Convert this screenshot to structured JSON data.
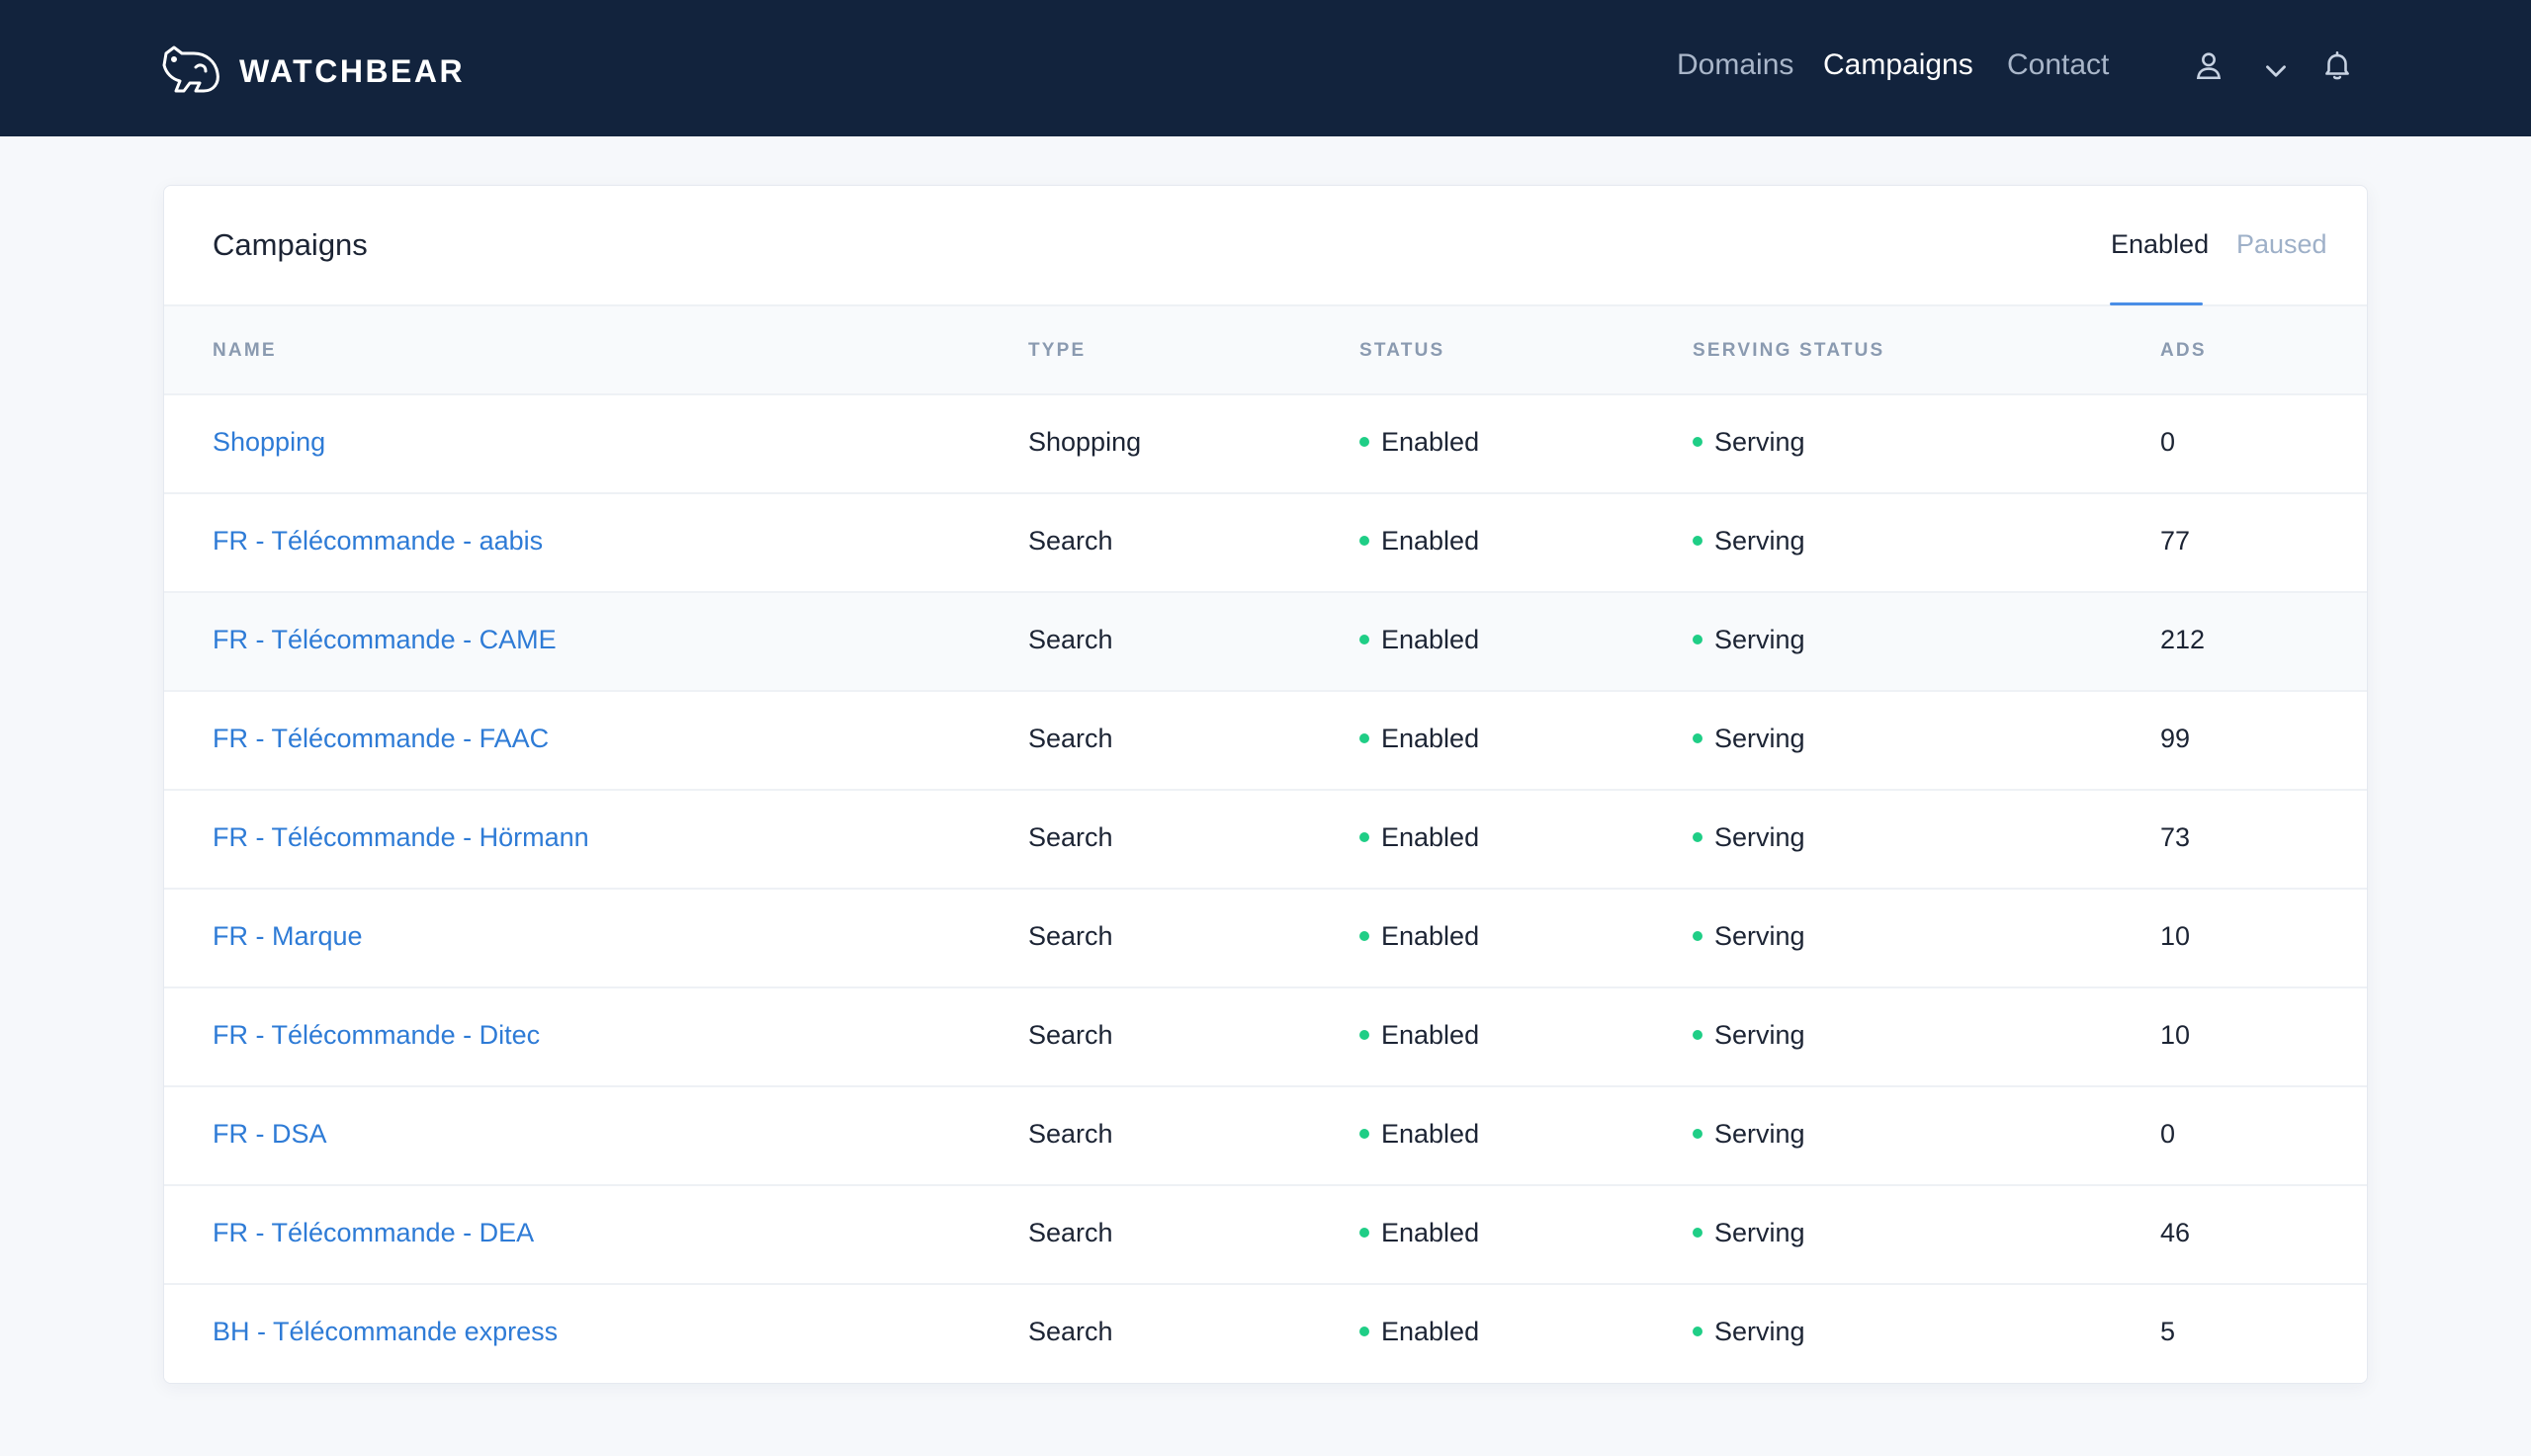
{
  "header": {
    "brand": "WATCHBEAR",
    "nav": [
      {
        "label": "Domains",
        "active": false
      },
      {
        "label": "Campaigns",
        "active": true
      },
      {
        "label": "Contact",
        "active": false
      }
    ],
    "icons": [
      "bear-logo-icon",
      "user-icon",
      "chevron-down-icon",
      "bell-icon"
    ]
  },
  "card": {
    "title": "Campaigns",
    "tabs": [
      {
        "label": "Enabled",
        "active": true
      },
      {
        "label": "Paused",
        "active": false
      }
    ]
  },
  "table": {
    "columns": [
      "NAME",
      "TYPE",
      "STATUS",
      "SERVING STATUS",
      "ADS"
    ],
    "rows": [
      {
        "name": "Shopping",
        "type": "Shopping",
        "status": "Enabled",
        "serving": "Serving",
        "ads": "0"
      },
      {
        "name": "FR - Télécommande - aabis",
        "type": "Search",
        "status": "Enabled",
        "serving": "Serving",
        "ads": "77"
      },
      {
        "name": "FR - Télécommande - CAME",
        "type": "Search",
        "status": "Enabled",
        "serving": "Serving",
        "ads": "212"
      },
      {
        "name": "FR - Télécommande - FAAC",
        "type": "Search",
        "status": "Enabled",
        "serving": "Serving",
        "ads": "99"
      },
      {
        "name": "FR - Télécommande - Hörmann",
        "type": "Search",
        "status": "Enabled",
        "serving": "Serving",
        "ads": "73"
      },
      {
        "name": "FR - Marque",
        "type": "Search",
        "status": "Enabled",
        "serving": "Serving",
        "ads": "10"
      },
      {
        "name": "FR - Télécommande - Ditec",
        "type": "Search",
        "status": "Enabled",
        "serving": "Serving",
        "ads": "10"
      },
      {
        "name": "FR - DSA",
        "type": "Search",
        "status": "Enabled",
        "serving": "Serving",
        "ads": "0"
      },
      {
        "name": "FR - Télécommande - DEA",
        "type": "Search",
        "status": "Enabled",
        "serving": "Serving",
        "ads": "46"
      },
      {
        "name": "BH - Télécommande express",
        "type": "Search",
        "status": "Enabled",
        "serving": "Serving",
        "ads": "5"
      }
    ]
  },
  "colors": {
    "topbar": "#12233d",
    "link": "#2e7bd6",
    "status_dot": "#1fce86",
    "tab_underline": "#4a8ee6"
  }
}
